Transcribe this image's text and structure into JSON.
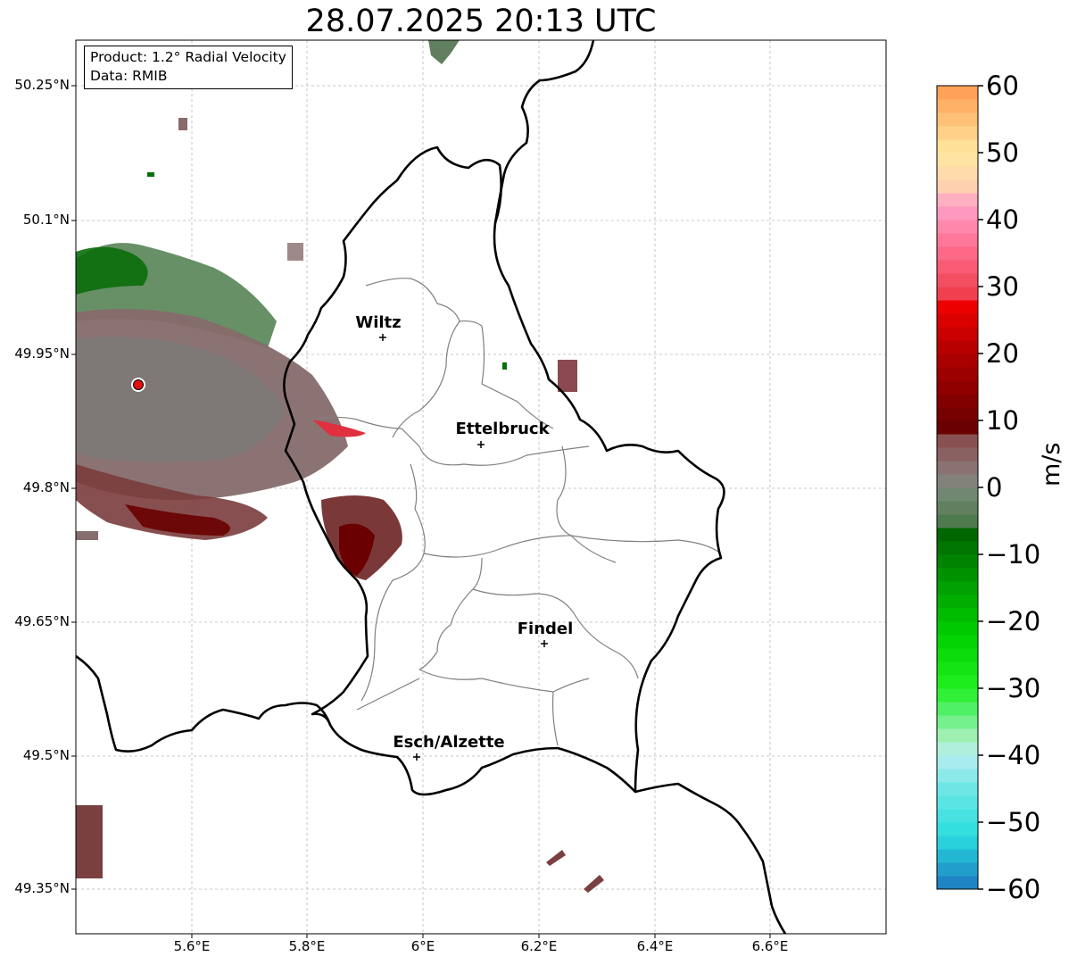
{
  "title": "28.07.2025 20:13 UTC",
  "info_box": {
    "product_line": "Product: 1.2° Radial Velocity",
    "data_line": "Data: RMIB"
  },
  "map": {
    "lon_range": [
      5.4,
      6.8
    ],
    "lat_range": [
      49.3,
      50.3
    ],
    "lat_ticks": [
      "50.25°N",
      "50.1°N",
      "49.95°N",
      "49.8°N",
      "49.65°N",
      "49.5°N",
      "49.35°N"
    ],
    "lon_ticks": [
      "5.6°E",
      "5.8°E",
      "6°E",
      "6.2°E",
      "6.4°E",
      "6.6°E"
    ],
    "gridlines": true,
    "radar_site": {
      "lon": 5.505,
      "lat": 49.914,
      "color": "#e01010"
    },
    "cities": [
      {
        "name": "Wiltz",
        "lon": 5.93,
        "lat": 49.97
      },
      {
        "name": "Ettelbruck",
        "lon": 6.1,
        "lat": 49.85
      },
      {
        "name": "Findel",
        "lon": 6.21,
        "lat": 49.627
      },
      {
        "name": "Esch/Alzette",
        "lon": 5.99,
        "lat": 49.5
      }
    ]
  },
  "colorbar": {
    "label": "m/s",
    "min": -60,
    "max": 60,
    "tick_labels": [
      "60",
      "50",
      "40",
      "30",
      "20",
      "10",
      "0",
      "−10",
      "−20",
      "−30",
      "−40",
      "−50",
      "−60"
    ],
    "stops": [
      {
        "v": -60,
        "c": "#1f78c0"
      },
      {
        "v": -56,
        "c": "#22aad0"
      },
      {
        "v": -52,
        "c": "#2adede"
      },
      {
        "v": -45,
        "c": "#6ee6e6"
      },
      {
        "v": -40,
        "c": "#b8eef0"
      },
      {
        "v": -37,
        "c": "#9ef0b0"
      },
      {
        "v": -34,
        "c": "#60f07a"
      },
      {
        "v": -30,
        "c": "#20f020"
      },
      {
        "v": -22,
        "c": "#00d000"
      },
      {
        "v": -14,
        "c": "#009a00"
      },
      {
        "v": -6,
        "c": "#006000"
      },
      {
        "v": -5,
        "c": "#4e7a4e"
      },
      {
        "v": 0,
        "c": "#7a8a7a"
      },
      {
        "v": 2,
        "c": "#8a7a7a"
      },
      {
        "v": 8,
        "c": "#884848"
      },
      {
        "v": 9,
        "c": "#6a0000"
      },
      {
        "v": 20,
        "c": "#b00000"
      },
      {
        "v": 28,
        "c": "#f40000"
      },
      {
        "v": 29,
        "c": "#f04050"
      },
      {
        "v": 36,
        "c": "#ff7090"
      },
      {
        "v": 42,
        "c": "#ffa0c8"
      },
      {
        "v": 45,
        "c": "#ffd0b0"
      },
      {
        "v": 50,
        "c": "#ffe8a0"
      },
      {
        "v": 55,
        "c": "#ffc078"
      },
      {
        "v": 60,
        "c": "#ff9a50"
      }
    ]
  }
}
